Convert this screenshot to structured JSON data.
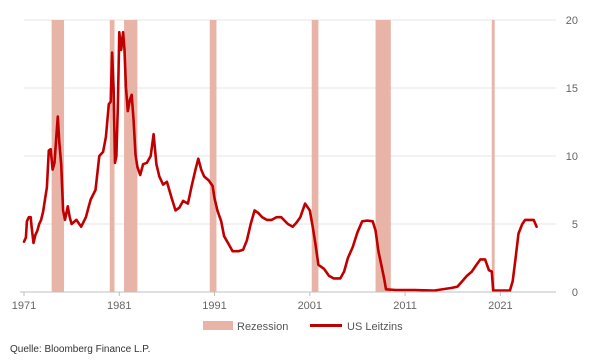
{
  "chart_data": {
    "type": "line",
    "x_ticks": [
      "1971",
      "1981",
      "1991",
      "2001",
      "2011",
      "2021"
    ],
    "y_ticks": [
      "0",
      "5",
      "10",
      "15",
      "20"
    ],
    "xlim": [
      1971.0,
      2026.0
    ],
    "ylim": [
      0,
      20
    ],
    "y_axis_side": "right",
    "grid": "horizontal",
    "legend_position": "bottom",
    "recessions": [
      {
        "start": 1973.9,
        "end": 1975.2
      },
      {
        "start": 1980.0,
        "end": 1980.5
      },
      {
        "start": 1981.5,
        "end": 1982.9
      },
      {
        "start": 1990.5,
        "end": 1991.2
      },
      {
        "start": 2001.2,
        "end": 2001.9
      },
      {
        "start": 2007.9,
        "end": 2009.5
      },
      {
        "start": 2020.1,
        "end": 2020.4
      }
    ],
    "series": [
      {
        "name": "US Leitzins",
        "color": "#c00000",
        "points": [
          [
            1971.0,
            3.7
          ],
          [
            1971.2,
            4.0
          ],
          [
            1971.3,
            5.2
          ],
          [
            1971.5,
            5.5
          ],
          [
            1971.7,
            5.5
          ],
          [
            1971.8,
            4.8
          ],
          [
            1972.0,
            3.6
          ],
          [
            1972.2,
            4.2
          ],
          [
            1972.4,
            4.5
          ],
          [
            1972.6,
            5.0
          ],
          [
            1972.8,
            5.3
          ],
          [
            1973.0,
            5.9
          ],
          [
            1973.2,
            6.8
          ],
          [
            1973.4,
            7.7
          ],
          [
            1973.6,
            10.4
          ],
          [
            1973.8,
            10.5
          ],
          [
            1974.0,
            9.0
          ],
          [
            1974.2,
            9.5
          ],
          [
            1974.4,
            11.5
          ],
          [
            1974.55,
            12.9
          ],
          [
            1974.7,
            11.0
          ],
          [
            1974.9,
            9.4
          ],
          [
            1975.1,
            6.0
          ],
          [
            1975.3,
            5.3
          ],
          [
            1975.6,
            6.3
          ],
          [
            1975.8,
            5.5
          ],
          [
            1976.0,
            5.0
          ],
          [
            1976.5,
            5.3
          ],
          [
            1977.0,
            4.8
          ],
          [
            1977.5,
            5.5
          ],
          [
            1977.8,
            6.3
          ],
          [
            1978.0,
            6.8
          ],
          [
            1978.5,
            7.5
          ],
          [
            1978.9,
            10.0
          ],
          [
            1979.3,
            10.3
          ],
          [
            1979.6,
            11.4
          ],
          [
            1979.9,
            13.8
          ],
          [
            1980.1,
            14.0
          ],
          [
            1980.25,
            17.6
          ],
          [
            1980.4,
            15.0
          ],
          [
            1980.55,
            9.5
          ],
          [
            1980.7,
            10.0
          ],
          [
            1980.85,
            13.5
          ],
          [
            1981.0,
            19.1
          ],
          [
            1981.2,
            17.8
          ],
          [
            1981.4,
            19.1
          ],
          [
            1981.55,
            17.8
          ],
          [
            1981.7,
            15.1
          ],
          [
            1981.9,
            13.3
          ],
          [
            1982.1,
            14.1
          ],
          [
            1982.3,
            14.5
          ],
          [
            1982.5,
            12.6
          ],
          [
            1982.7,
            10.1
          ],
          [
            1982.9,
            9.2
          ],
          [
            1983.2,
            8.6
          ],
          [
            1983.5,
            9.4
          ],
          [
            1983.9,
            9.5
          ],
          [
            1984.3,
            10.0
          ],
          [
            1984.6,
            11.6
          ],
          [
            1984.9,
            9.4
          ],
          [
            1985.2,
            8.5
          ],
          [
            1985.6,
            7.9
          ],
          [
            1986.0,
            8.1
          ],
          [
            1986.5,
            6.9
          ],
          [
            1986.9,
            6.0
          ],
          [
            1987.3,
            6.2
          ],
          [
            1987.7,
            6.7
          ],
          [
            1988.2,
            6.5
          ],
          [
            1988.6,
            7.8
          ],
          [
            1989.0,
            9.0
          ],
          [
            1989.3,
            9.8
          ],
          [
            1989.6,
            9.0
          ],
          [
            1989.9,
            8.5
          ],
          [
            1990.4,
            8.2
          ],
          [
            1990.8,
            7.8
          ],
          [
            1991.0,
            6.9
          ],
          [
            1991.3,
            6.0
          ],
          [
            1991.7,
            5.2
          ],
          [
            1992.0,
            4.1
          ],
          [
            1992.5,
            3.5
          ],
          [
            1992.9,
            3.0
          ],
          [
            1993.5,
            3.0
          ],
          [
            1994.0,
            3.1
          ],
          [
            1994.4,
            3.8
          ],
          [
            1994.8,
            5.0
          ],
          [
            1995.2,
            6.0
          ],
          [
            1995.6,
            5.8
          ],
          [
            1996.0,
            5.5
          ],
          [
            1996.5,
            5.3
          ],
          [
            1997.0,
            5.3
          ],
          [
            1997.5,
            5.5
          ],
          [
            1998.0,
            5.5
          ],
          [
            1998.7,
            5.0
          ],
          [
            1999.2,
            4.8
          ],
          [
            1999.6,
            5.1
          ],
          [
            2000.0,
            5.5
          ],
          [
            2000.5,
            6.5
          ],
          [
            2001.0,
            6.0
          ],
          [
            2001.3,
            4.8
          ],
          [
            2001.6,
            3.5
          ],
          [
            2001.9,
            2.0
          ],
          [
            2002.5,
            1.7
          ],
          [
            2003.0,
            1.2
          ],
          [
            2003.5,
            1.0
          ],
          [
            2004.2,
            1.0
          ],
          [
            2004.6,
            1.5
          ],
          [
            2005.0,
            2.5
          ],
          [
            2005.5,
            3.3
          ],
          [
            2006.0,
            4.4
          ],
          [
            2006.5,
            5.2
          ],
          [
            2007.0,
            5.25
          ],
          [
            2007.6,
            5.2
          ],
          [
            2007.9,
            4.5
          ],
          [
            2008.2,
            3.0
          ],
          [
            2008.5,
            2.0
          ],
          [
            2008.8,
            1.0
          ],
          [
            2009.0,
            0.2
          ],
          [
            2010.0,
            0.15
          ],
          [
            2012.0,
            0.15
          ],
          [
            2014.0,
            0.1
          ],
          [
            2015.9,
            0.3
          ],
          [
            2016.5,
            0.4
          ],
          [
            2017.0,
            0.8
          ],
          [
            2017.5,
            1.2
          ],
          [
            2018.0,
            1.5
          ],
          [
            2018.5,
            2.0
          ],
          [
            2018.9,
            2.4
          ],
          [
            2019.4,
            2.4
          ],
          [
            2019.8,
            1.6
          ],
          [
            2020.1,
            1.5
          ],
          [
            2020.25,
            0.1
          ],
          [
            2021.0,
            0.1
          ],
          [
            2022.0,
            0.1
          ],
          [
            2022.3,
            0.8
          ],
          [
            2022.6,
            2.5
          ],
          [
            2022.9,
            4.3
          ],
          [
            2023.3,
            5.0
          ],
          [
            2023.6,
            5.3
          ],
          [
            2024.0,
            5.3
          ],
          [
            2024.5,
            5.3
          ],
          [
            2024.8,
            4.8
          ]
        ]
      },
      {
        "name": "Rezession",
        "color": "#e8b4a8"
      }
    ]
  },
  "source": "Quelle: Bloomberg Finance L.P."
}
